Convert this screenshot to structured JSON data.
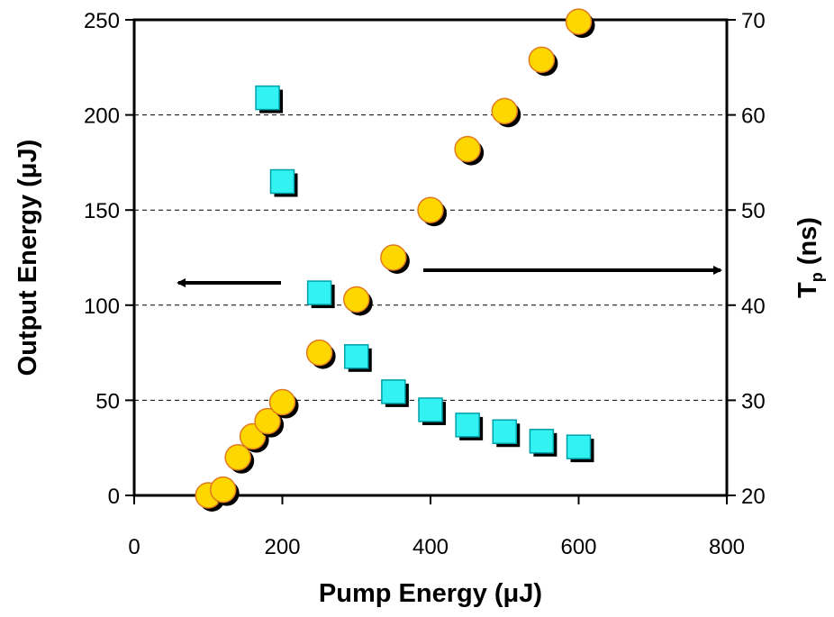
{
  "chart_data": {
    "type": "scatter",
    "title": "",
    "xlabel": "Pump Energy (μJ)",
    "ylabel": "Output Energy (μJ)",
    "y2label_main": "T",
    "y2label_sub": "p",
    "y2label_unit": " (ns)",
    "xlim": [
      0,
      800
    ],
    "ylim": [
      0,
      250
    ],
    "y2lim": [
      20,
      70
    ],
    "xticks": [
      0,
      200,
      400,
      600,
      800
    ],
    "yticks": [
      0,
      50,
      100,
      150,
      200,
      250
    ],
    "y2ticks": [
      20,
      30,
      40,
      50,
      60,
      70
    ],
    "grid": "horizontal dashed",
    "series": [
      {
        "axis": "left",
        "marker": "circle",
        "color": "#FFD700",
        "edge_color": "#E07A1F",
        "x": [
          100,
          120,
          140,
          160,
          180,
          200,
          250,
          300,
          350,
          400,
          450,
          500,
          550,
          600
        ],
        "y": [
          0,
          3,
          20,
          31,
          39,
          49,
          75,
          103,
          125,
          150,
          182,
          202,
          229,
          249
        ]
      },
      {
        "axis": "right",
        "marker": "square",
        "color": "#33F2F2",
        "edge_color": "#00A0A8",
        "x": [
          180,
          200,
          250,
          300,
          350,
          400,
          450,
          500,
          550,
          600
        ],
        "y": [
          61.8,
          53,
          41.3,
          34.6,
          30.9,
          29,
          27.4,
          26.7,
          25.7,
          25.1
        ]
      }
    ],
    "annotations": [
      {
        "type": "arrow",
        "direction": "left",
        "points_to": "left axis"
      },
      {
        "type": "arrow",
        "direction": "right",
        "points_to": "right axis"
      }
    ]
  }
}
